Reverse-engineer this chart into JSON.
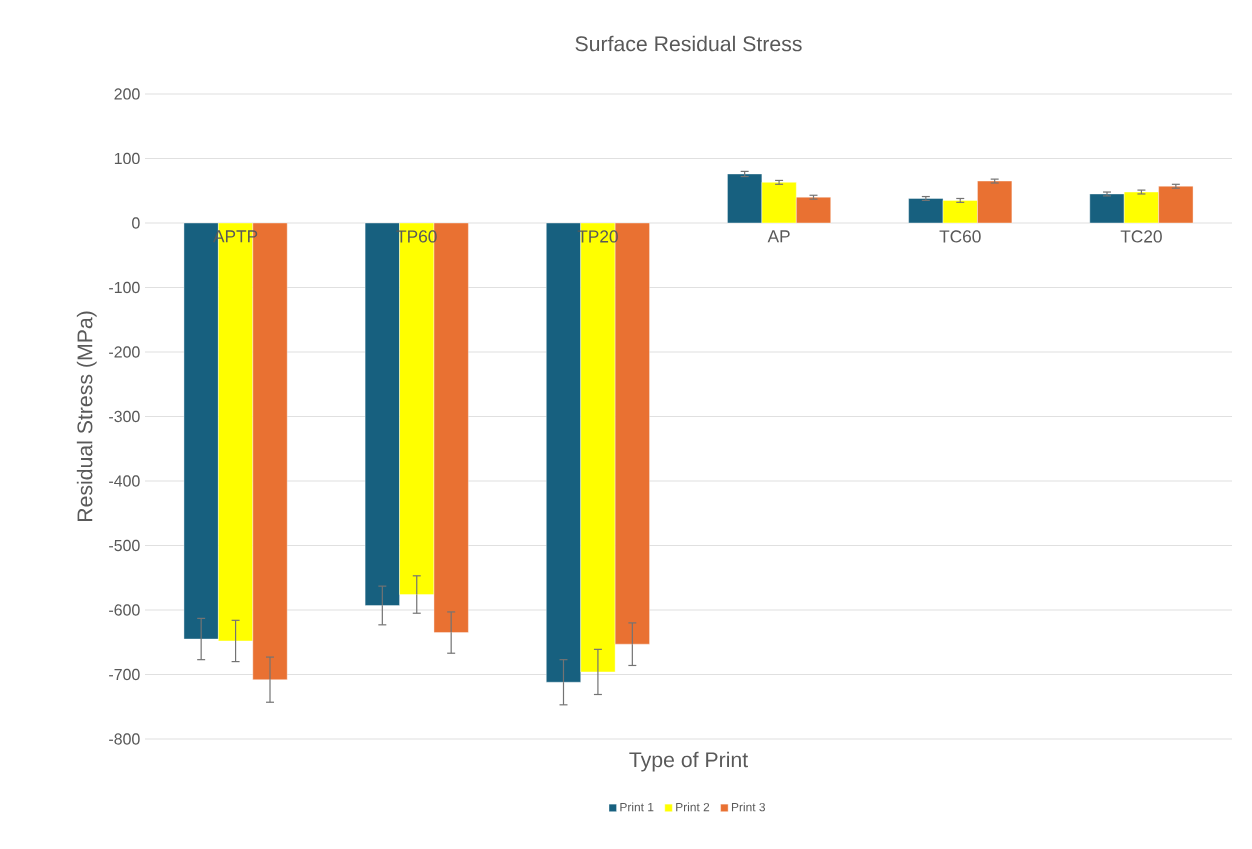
{
  "chart_data": {
    "type": "bar",
    "title": "Surface Residual Stress",
    "xlabel": "Type of Print",
    "ylabel": "Residual Stress (MPa)",
    "categories": [
      "APTP",
      "TP60",
      "TP20",
      "AP",
      "TC60",
      "TC20"
    ],
    "series": [
      {
        "name": "Print 1",
        "color": "#17607f",
        "values": [
          -645,
          -593,
          -712,
          76,
          38,
          45
        ],
        "errors": [
          32,
          30,
          35,
          4,
          3,
          3
        ]
      },
      {
        "name": "Print 2",
        "color": "#ffff00",
        "values": [
          -648,
          -576,
          -696,
          63,
          35,
          48
        ],
        "errors": [
          32,
          29,
          35,
          3,
          3,
          3
        ]
      },
      {
        "name": "Print 3",
        "color": "#e97132",
        "values": [
          -708,
          -635,
          -653,
          40,
          65,
          57
        ],
        "errors": [
          35,
          32,
          33,
          3,
          3,
          3
        ]
      }
    ],
    "ylim": [
      -800,
      200
    ],
    "yticks": [
      -800,
      -700,
      -600,
      -500,
      -400,
      -300,
      -200,
      -100,
      0,
      100,
      200
    ],
    "grid": "y",
    "legend": "bottom"
  }
}
